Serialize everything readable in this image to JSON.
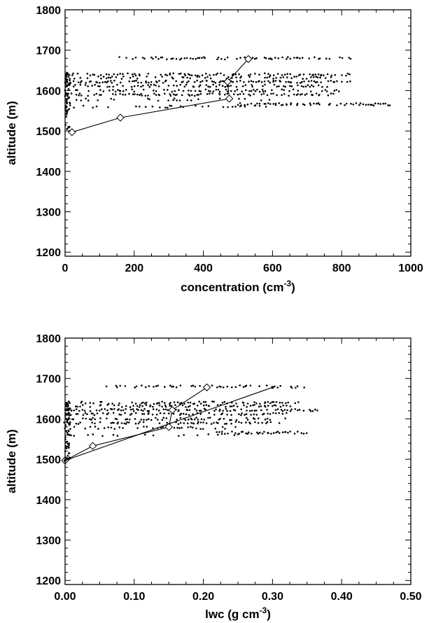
{
  "chart_data": [
    {
      "type": "scatter",
      "xlabel": "concentration (cm",
      "xlabel_sup": "-3",
      "xlabel_end": ")",
      "ylabel": "altitude (m)",
      "xlim": [
        0,
        1000
      ],
      "ylim": [
        1190,
        1800
      ],
      "xticks": [
        "0",
        "200",
        "400",
        "600",
        "800",
        "1000"
      ],
      "yticks": [
        "1200",
        "1300",
        "1400",
        "1500",
        "1600",
        "1700",
        "1800"
      ],
      "grid": false,
      "scatter_bands": [
        {
          "y": 1680,
          "x_range": [
            150,
            830
          ],
          "density": 0.55
        },
        {
          "y": 1640,
          "x_range": [
            0,
            830
          ],
          "density": 0.6
        },
        {
          "y": 1632,
          "x_range": [
            0,
            800
          ],
          "density": 0.5
        },
        {
          "y": 1622,
          "x_range": [
            0,
            830
          ],
          "density": 0.75
        },
        {
          "y": 1612,
          "x_range": [
            0,
            780
          ],
          "density": 0.6
        },
        {
          "y": 1600,
          "x_range": [
            0,
            800
          ],
          "density": 0.55
        },
        {
          "y": 1590,
          "x_range": [
            0,
            780
          ],
          "density": 0.6
        },
        {
          "y": 1578,
          "x_range": [
            0,
            600
          ],
          "density": 0.35
        },
        {
          "y": 1566,
          "x_range": [
            500,
            940
          ],
          "density": 0.8
        },
        {
          "y": 1560,
          "x_range": [
            0,
            600
          ],
          "density": 0.25
        }
      ],
      "series": [
        {
          "marker": "diamond",
          "x": [
            20,
            160,
            475,
            470,
            530
          ],
          "y": [
            1497,
            1533,
            1580,
            1622,
            1678
          ]
        }
      ]
    },
    {
      "type": "scatter",
      "xlabel": "lwc (g cm",
      "xlabel_sup": "-3",
      "xlabel_end": ")",
      "ylabel": "altitude (m)",
      "xlim": [
        0.0,
        0.5
      ],
      "ylim": [
        1190,
        1800
      ],
      "xticks": [
        "0.00",
        "0.10",
        "0.20",
        "0.30",
        "0.40",
        "0.50"
      ],
      "yticks": [
        "1200",
        "1300",
        "1400",
        "1500",
        "1600",
        "1700",
        "1800"
      ],
      "grid": false,
      "scatter_bands": [
        {
          "y": 1680,
          "x_range": [
            0.06,
            0.35
          ],
          "density": 0.55
        },
        {
          "y": 1640,
          "x_range": [
            0.0,
            0.34
          ],
          "density": 0.6
        },
        {
          "y": 1632,
          "x_range": [
            0.0,
            0.33
          ],
          "density": 0.5
        },
        {
          "y": 1622,
          "x_range": [
            0.0,
            0.37
          ],
          "density": 0.75
        },
        {
          "y": 1612,
          "x_range": [
            0.0,
            0.32
          ],
          "density": 0.6
        },
        {
          "y": 1600,
          "x_range": [
            0.0,
            0.33
          ],
          "density": 0.55
        },
        {
          "y": 1590,
          "x_range": [
            0.0,
            0.31
          ],
          "density": 0.6
        },
        {
          "y": 1578,
          "x_range": [
            0.0,
            0.25
          ],
          "density": 0.35
        },
        {
          "y": 1566,
          "x_range": [
            0.22,
            0.35
          ],
          "density": 0.8
        },
        {
          "y": 1560,
          "x_range": [
            0.0,
            0.27
          ],
          "density": 0.25
        }
      ],
      "series": [
        {
          "marker": "diamond",
          "x": [
            0.0,
            0.04,
            0.15,
            0.155,
            0.205
          ],
          "y": [
            1497,
            1533,
            1580,
            1622,
            1678
          ]
        },
        {
          "marker": "dot",
          "x": [
            0.0,
            0.3
          ],
          "y": [
            1497,
            1678
          ]
        }
      ]
    }
  ]
}
